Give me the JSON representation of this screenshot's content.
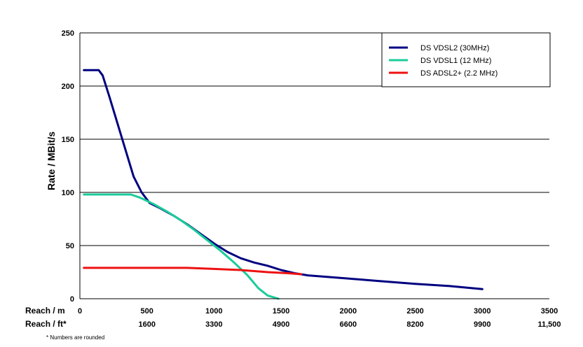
{
  "chart_data": {
    "type": "line",
    "ylabel": "Rate / MBit/s",
    "ylim": [
      0,
      250
    ],
    "yticks": [
      0,
      50,
      100,
      150,
      200,
      250
    ],
    "xlim": [
      0,
      3500
    ],
    "grid": "horizontal",
    "legend_position": "top-right",
    "x_rows": [
      {
        "label": "Reach / m",
        "ticks": [
          "0",
          "500",
          "1000",
          "1500",
          "2000",
          "2500",
          "3000",
          "3500"
        ],
        "values": [
          0,
          500,
          1000,
          1500,
          2000,
          2500,
          3000,
          3500
        ]
      },
      {
        "label": "Reach / ft*",
        "ticks": [
          "1600",
          "3300",
          "4900",
          "6600",
          "8200",
          "9900",
          "11,500"
        ],
        "values": [
          500,
          1000,
          1500,
          2000,
          2500,
          3000,
          3500
        ]
      }
    ],
    "series": [
      {
        "name": "DS VDSL2 (30MHz)",
        "color": "#000080",
        "points": [
          [
            30,
            215
          ],
          [
            140,
            215
          ],
          [
            170,
            210
          ],
          [
            220,
            190
          ],
          [
            280,
            165
          ],
          [
            340,
            140
          ],
          [
            400,
            115
          ],
          [
            460,
            100
          ],
          [
            520,
            90
          ],
          [
            600,
            85
          ],
          [
            700,
            78
          ],
          [
            800,
            70
          ],
          [
            900,
            61
          ],
          [
            1000,
            52
          ],
          [
            1100,
            44
          ],
          [
            1200,
            38
          ],
          [
            1300,
            34
          ],
          [
            1400,
            31
          ],
          [
            1500,
            27
          ],
          [
            1600,
            24
          ],
          [
            1700,
            22
          ],
          [
            1800,
            21
          ],
          [
            1900,
            20
          ],
          [
            2000,
            19
          ],
          [
            2200,
            17
          ],
          [
            2500,
            14
          ],
          [
            2750,
            12
          ],
          [
            3000,
            9
          ]
        ]
      },
      {
        "name": "DS VDSL1 (12 MHz)",
        "color": "#1acc99",
        "points": [
          [
            30,
            98
          ],
          [
            100,
            98
          ],
          [
            200,
            98
          ],
          [
            300,
            98
          ],
          [
            380,
            98
          ],
          [
            450,
            95
          ],
          [
            550,
            89
          ],
          [
            650,
            82
          ],
          [
            750,
            74
          ],
          [
            850,
            65
          ],
          [
            950,
            55
          ],
          [
            1050,
            45
          ],
          [
            1150,
            34
          ],
          [
            1250,
            22
          ],
          [
            1330,
            10
          ],
          [
            1400,
            3
          ],
          [
            1480,
            0
          ]
        ]
      },
      {
        "name": "DS ADSL2+ (2.2 MHz)",
        "color": "#ee1111",
        "points": [
          [
            30,
            29
          ],
          [
            300,
            29
          ],
          [
            600,
            29
          ],
          [
            800,
            29
          ],
          [
            1000,
            28
          ],
          [
            1200,
            27
          ],
          [
            1400,
            25
          ],
          [
            1550,
            24
          ],
          [
            1650,
            23
          ]
        ]
      }
    ],
    "footnote": "* Numbers are rounded"
  }
}
